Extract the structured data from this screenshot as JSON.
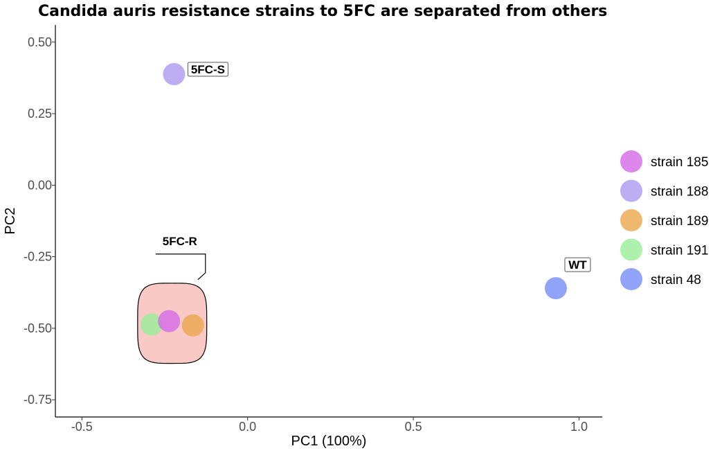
{
  "chart_data": {
    "type": "scatter",
    "title": "Candida auris resistance strains to 5FC are separated from others",
    "xlabel": "PC1 (100%)",
    "ylabel": "PC2",
    "xlim": [
      -0.58,
      1.07
    ],
    "ylim": [
      -0.81,
      0.56
    ],
    "x_ticks": [
      {
        "value": -0.5,
        "label": "-0.5"
      },
      {
        "value": 0.0,
        "label": "0.0"
      },
      {
        "value": 0.5,
        "label": "0.5"
      },
      {
        "value": 1.0,
        "label": "1.0"
      }
    ],
    "y_ticks": [
      {
        "value": 0.5,
        "label": "0.50"
      },
      {
        "value": 0.25,
        "label": "0.25"
      },
      {
        "value": 0.0,
        "label": "0.00"
      },
      {
        "value": -0.25,
        "label": "-0.25"
      },
      {
        "value": -0.5,
        "label": "-0.50"
      },
      {
        "value": -0.75,
        "label": "-0.75"
      }
    ],
    "grid": false,
    "legend_position": "right",
    "series": [
      {
        "name": "strain 185",
        "color": "#D66DE8",
        "x": -0.237,
        "y": -0.475
      },
      {
        "name": "strain 188",
        "color": "#AE9BF0",
        "x": -0.222,
        "y": 0.388
      },
      {
        "name": "strain 189",
        "color": "#EBA84F",
        "x": -0.165,
        "y": -0.49
      },
      {
        "name": "strain 191",
        "color": "#9BEE9A",
        "x": -0.29,
        "y": -0.487
      },
      {
        "name": "strain 48",
        "color": "#7990F8",
        "x": 0.93,
        "y": -0.36
      }
    ],
    "annotations": [
      {
        "label": "5FC-S",
        "x": -0.222,
        "y": 0.388
      },
      {
        "label": "WT",
        "x": 0.93,
        "y": -0.36
      },
      {
        "label": "5FC-R",
        "x": -0.22,
        "y": -0.49
      }
    ],
    "ellipse_fill": "#F9C9C6"
  }
}
